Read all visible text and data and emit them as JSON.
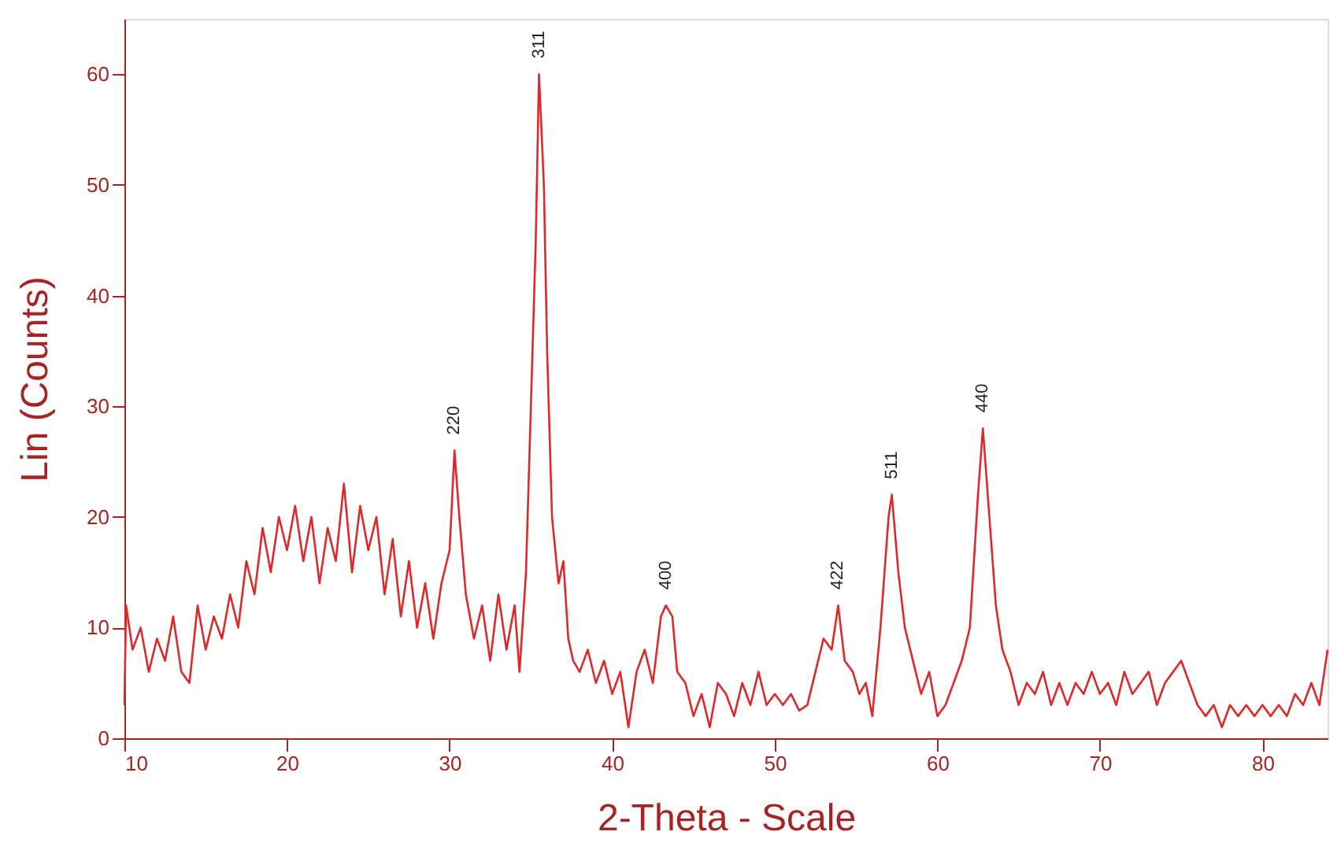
{
  "chart_data": {
    "type": "line",
    "xlabel": "2-Theta - Scale",
    "ylabel": "Lin (Counts)",
    "xlim": [
      10,
      84
    ],
    "xticks": [
      10,
      20,
      30,
      40,
      50,
      60,
      70,
      80
    ],
    "ylim": [
      0,
      65
    ],
    "yticks": [
      0,
      10,
      20,
      30,
      40,
      50,
      60
    ],
    "grid": false,
    "marker": "none",
    "line_style": "solid",
    "series": [
      {
        "color": "#e02828",
        "x": [
          10,
          10.1,
          10.5,
          11,
          11.5,
          12,
          12.5,
          13,
          13.5,
          14,
          14.5,
          15,
          15.5,
          16,
          16.5,
          17,
          17.5,
          18,
          18.5,
          19,
          19.5,
          20,
          20.5,
          21,
          21.5,
          22,
          22.5,
          23,
          23.5,
          24,
          24.5,
          25,
          25.5,
          26,
          26.5,
          27,
          27.5,
          28,
          28.5,
          29,
          29.5,
          30,
          30.3,
          30.6,
          31,
          31.5,
          32,
          32.5,
          33,
          33.5,
          34,
          34.3,
          34.7,
          35,
          35.3,
          35.5,
          35.8,
          36,
          36.3,
          36.7,
          37,
          37.3,
          37.6,
          38,
          38.5,
          39,
          39.5,
          40,
          40.5,
          41,
          41.5,
          42,
          42.5,
          43,
          43.3,
          43.7,
          44,
          44.5,
          45,
          45.5,
          46,
          46.5,
          47,
          47.5,
          48,
          48.5,
          49,
          49.5,
          50,
          50.5,
          51,
          51.5,
          52,
          52.5,
          53,
          53.5,
          53.9,
          54.3,
          54.8,
          55.2,
          55.6,
          56,
          56.5,
          57,
          57.2,
          57.6,
          58,
          58.5,
          59,
          59.5,
          60,
          60.5,
          61,
          61.5,
          62,
          62.5,
          62.8,
          63.2,
          63.6,
          64,
          64.5,
          65,
          65.5,
          66,
          66.5,
          67,
          67.5,
          68,
          68.5,
          69,
          69.5,
          70,
          70.5,
          71,
          71.5,
          72,
          72.5,
          73,
          73.5,
          74,
          74.5,
          75,
          75.5,
          76,
          76.5,
          77,
          77.5,
          78,
          78.5,
          79,
          79.5,
          80,
          80.5,
          81,
          81.5,
          82,
          82.5,
          83,
          83.5,
          84
        ],
        "values": [
          3,
          12,
          8,
          10,
          6,
          9,
          7,
          11,
          6,
          5,
          12,
          8,
          11,
          9,
          13,
          10,
          16,
          13,
          19,
          15,
          20,
          17,
          21,
          16,
          20,
          14,
          19,
          16,
          23,
          15,
          21,
          17,
          20,
          13,
          18,
          11,
          16,
          10,
          14,
          9,
          14,
          17,
          26,
          20,
          13,
          9,
          12,
          7,
          13,
          8,
          12,
          6,
          15,
          30,
          45,
          60,
          50,
          35,
          20,
          14,
          16,
          9,
          7,
          6,
          8,
          5,
          7,
          4,
          6,
          1,
          6,
          8,
          5,
          11,
          12,
          11,
          6,
          5,
          2,
          4,
          1,
          5,
          4,
          2,
          5,
          3,
          6,
          3,
          4,
          3,
          4,
          2.5,
          3,
          6,
          9,
          8,
          12,
          7,
          6,
          4,
          5,
          2,
          10,
          20,
          22,
          15,
          10,
          7,
          4,
          6,
          2,
          3,
          5,
          7,
          10,
          22,
          28,
          20,
          12,
          8,
          6,
          3,
          5,
          4,
          6,
          3,
          5,
          3,
          5,
          4,
          6,
          4,
          5,
          3,
          6,
          4,
          5,
          6,
          3,
          5,
          6,
          7,
          5,
          3,
          2,
          3,
          1,
          3,
          2,
          3,
          2,
          3,
          2,
          3,
          2,
          4,
          3,
          5,
          3,
          8
        ]
      }
    ],
    "annotations": [
      {
        "text": "220",
        "x": 30.3,
        "y": 26
      },
      {
        "text": "311",
        "x": 35.5,
        "y": 60
      },
      {
        "text": "400",
        "x": 43.3,
        "y": 12
      },
      {
        "text": "422",
        "x": 53.9,
        "y": 12
      },
      {
        "text": "511",
        "x": 57.2,
        "y": 22
      },
      {
        "text": "440",
        "x": 62.8,
        "y": 28
      }
    ]
  }
}
